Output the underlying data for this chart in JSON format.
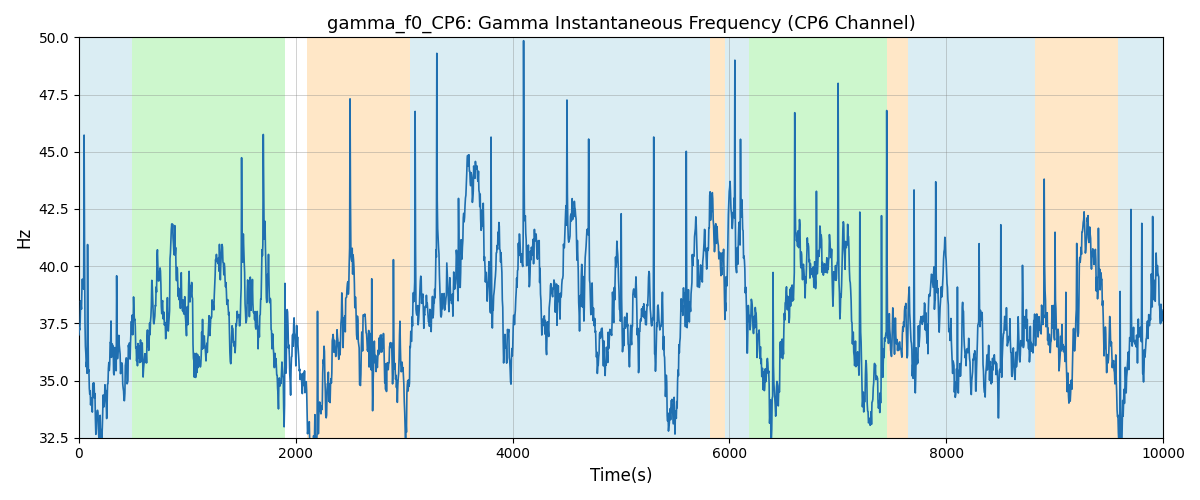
{
  "title": "gamma_f0_CP6: Gamma Instantaneous Frequency (CP6 Channel)",
  "xlabel": "Time(s)",
  "ylabel": "Hz",
  "xlim": [
    0,
    10000
  ],
  "ylim": [
    32.5,
    50.0
  ],
  "yticks": [
    32.5,
    35.0,
    37.5,
    40.0,
    42.5,
    45.0,
    47.5,
    50.0
  ],
  "line_color": "#1f6fb0",
  "line_width": 1.2,
  "bg_regions": [
    {
      "xmin": 0,
      "xmax": 490,
      "color": "#add8e6",
      "alpha": 0.45
    },
    {
      "xmin": 490,
      "xmax": 1900,
      "color": "#90ee90",
      "alpha": 0.45
    },
    {
      "xmin": 2100,
      "xmax": 3050,
      "color": "#ffd59a",
      "alpha": 0.55
    },
    {
      "xmin": 3050,
      "xmax": 5820,
      "color": "#add8e6",
      "alpha": 0.45
    },
    {
      "xmin": 5820,
      "xmax": 5960,
      "color": "#ffd59a",
      "alpha": 0.55
    },
    {
      "xmin": 5960,
      "xmax": 6180,
      "color": "#add8e6",
      "alpha": 0.45
    },
    {
      "xmin": 6180,
      "xmax": 7450,
      "color": "#90ee90",
      "alpha": 0.45
    },
    {
      "xmin": 7450,
      "xmax": 7650,
      "color": "#ffd59a",
      "alpha": 0.55
    },
    {
      "xmin": 7650,
      "xmax": 8820,
      "color": "#add8e6",
      "alpha": 0.45
    },
    {
      "xmin": 8820,
      "xmax": 9580,
      "color": "#ffd59a",
      "alpha": 0.55
    },
    {
      "xmin": 9580,
      "xmax": 10000,
      "color": "#add8e6",
      "alpha": 0.45
    }
  ],
  "seed": 42,
  "n_points": 2500
}
